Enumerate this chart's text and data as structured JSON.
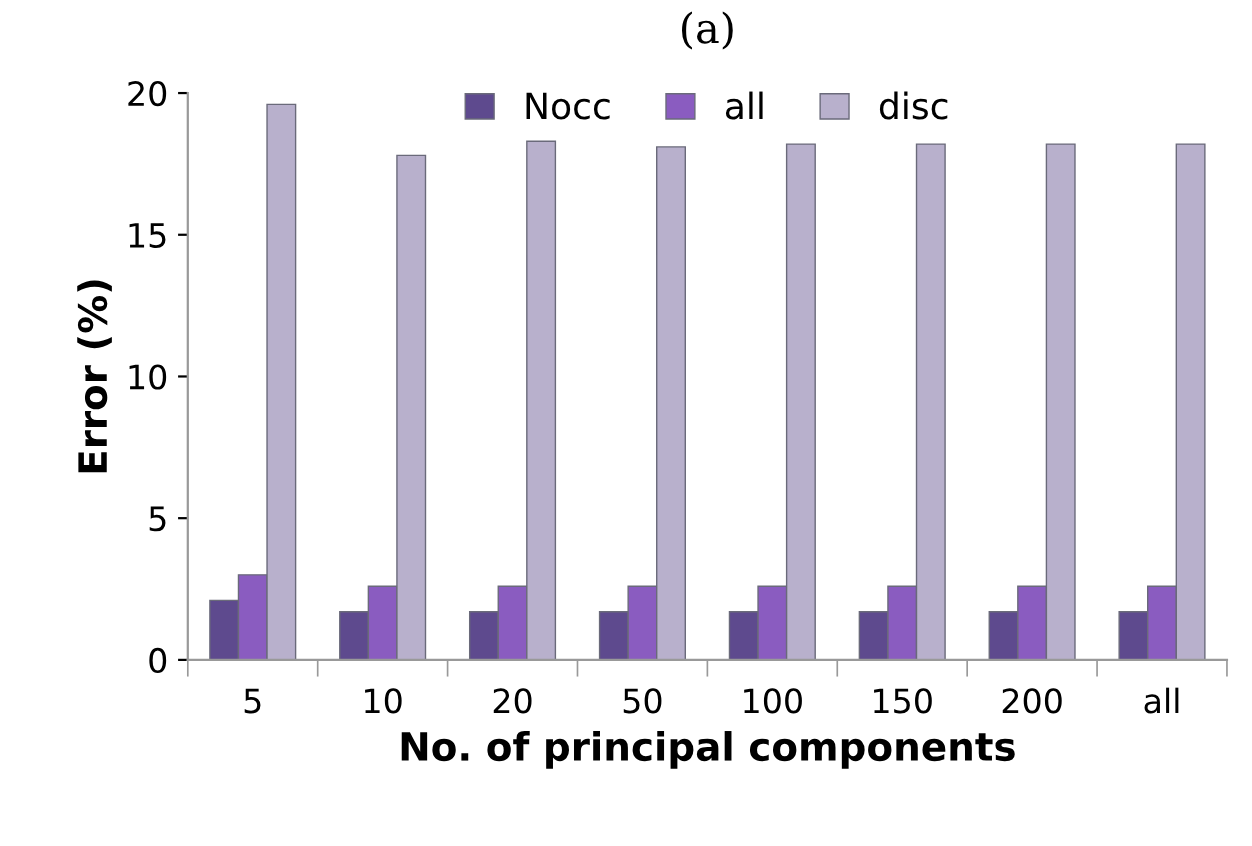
{
  "chart_data": {
    "type": "bar",
    "title": "(a)",
    "xlabel": "No. of principal components",
    "ylabel": "Error (%)",
    "categories": [
      "5",
      "10",
      "20",
      "50",
      "100",
      "150",
      "200",
      "all"
    ],
    "series": [
      {
        "name": "Nocc",
        "color": "#5e4a8e",
        "values": [
          2.1,
          1.7,
          1.7,
          1.7,
          1.7,
          1.7,
          1.7,
          1.7
        ]
      },
      {
        "name": "all",
        "color": "#8a5cc0",
        "values": [
          3.0,
          2.6,
          2.6,
          2.6,
          2.6,
          2.6,
          2.6,
          2.6
        ]
      },
      {
        "name": "disc",
        "color": "#b8b0cc",
        "values": [
          19.6,
          17.8,
          18.3,
          18.1,
          18.2,
          18.2,
          18.2,
          18.2
        ]
      }
    ],
    "ylim": [
      0,
      20
    ],
    "yticks": [
      0,
      5,
      10,
      15,
      20
    ],
    "grid": false,
    "legend": "top"
  }
}
